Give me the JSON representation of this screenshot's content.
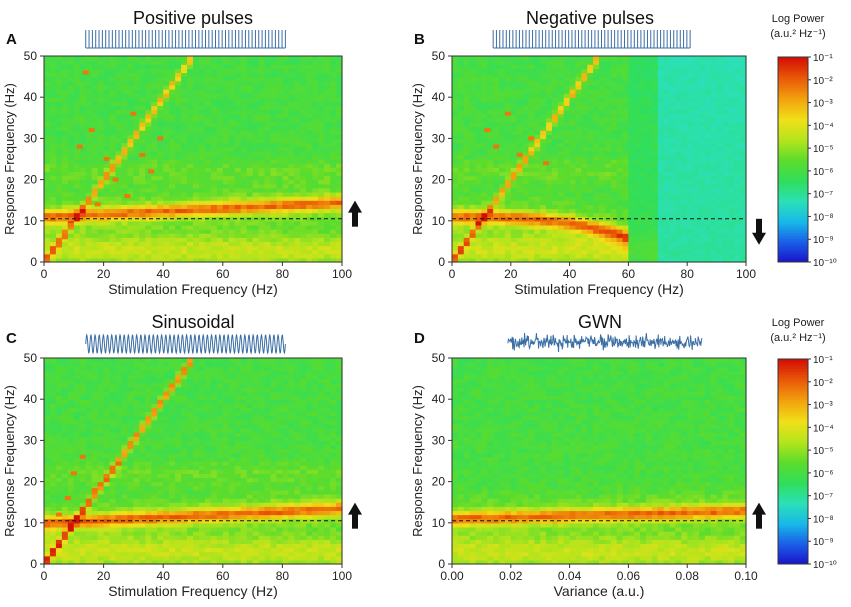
{
  "colors": {
    "colormap": [
      "#1a10c8",
      "#1a5ce8",
      "#18b8e8",
      "#2be0b8",
      "#30de5c",
      "#5cdc2c",
      "#b4e41c",
      "#f0e018",
      "#f2a20e",
      "#ea5a08",
      "#d41004"
    ],
    "dashed_line": "#111111",
    "arrow": "#111111",
    "stimulus": "#3a6ea5"
  },
  "colorbar": {
    "title": "Log Power",
    "units": "(a.u.² Hz⁻¹)",
    "tick_labels": [
      "10⁻¹",
      "10⁻²",
      "10⁻³",
      "10⁻⁴",
      "10⁻⁵",
      "10⁻⁶",
      "10⁻⁷",
      "10⁻⁸",
      "10⁻⁹",
      "10⁻¹⁰"
    ]
  },
  "chart_data": [
    {
      "panel": "A",
      "type": "heatmap",
      "title": "Positive pulses",
      "xlabel": "Stimulation Frequency (Hz)",
      "ylabel": "Response Frequency (Hz)",
      "xlim": [
        0,
        100
      ],
      "ylim": [
        0,
        50
      ],
      "xticks": [
        "0",
        "20",
        "40",
        "60",
        "80",
        "100"
      ],
      "yticks": [
        "0",
        "10",
        "20",
        "30",
        "40",
        "50"
      ],
      "stimulus": "pulse",
      "arrow": "up",
      "baseline_hz": 10.5,
      "ridge": {
        "start_hz": 11,
        "end_hz": 14.5
      },
      "harmonic": {
        "max_hz": 50
      },
      "spike_marks": [
        [
          5,
          4
        ],
        [
          7,
          6
        ],
        [
          9,
          9
        ],
        [
          12,
          28
        ],
        [
          14,
          46
        ],
        [
          16,
          32
        ],
        [
          18,
          14
        ],
        [
          21,
          25
        ],
        [
          24,
          20
        ],
        [
          28,
          16
        ],
        [
          30,
          36
        ],
        [
          33,
          26
        ],
        [
          36,
          22
        ],
        [
          39,
          30
        ]
      ]
    },
    {
      "panel": "B",
      "type": "heatmap",
      "title": "Negative pulses",
      "xlabel": "Stimulation Frequency (Hz)",
      "ylabel": "Response Frequency (Hz)",
      "xlim": [
        0,
        100
      ],
      "ylim": [
        0,
        50
      ],
      "xticks": [
        "0",
        "20",
        "40",
        "60",
        "80",
        "100"
      ],
      "yticks": [
        "0",
        "10",
        "20",
        "30",
        "40",
        "50"
      ],
      "stimulus": "pulse",
      "arrow": "down",
      "baseline_hz": 10.5,
      "ridge": {
        "start_hz": 11,
        "end_hz": 6,
        "end_x": 60
      },
      "harmonic": {
        "max_hz": 50
      },
      "quench_x": [
        60,
        100
      ],
      "spike_marks": [
        [
          12,
          32
        ],
        [
          15,
          28
        ],
        [
          19,
          36
        ],
        [
          23,
          26
        ],
        [
          27,
          30
        ],
        [
          32,
          24
        ]
      ]
    },
    {
      "panel": "C",
      "type": "heatmap",
      "title": "Sinusoidal",
      "xlabel": "Stimulation Frequency (Hz)",
      "ylabel": "Response Frequency (Hz)",
      "xlim": [
        0,
        100
      ],
      "ylim": [
        0,
        50
      ],
      "xticks": [
        "0",
        "20",
        "40",
        "60",
        "80",
        "100"
      ],
      "yticks": [
        "0",
        "10",
        "20",
        "30",
        "40",
        "50"
      ],
      "stimulus": "sine",
      "arrow": "up",
      "baseline_hz": 10.5,
      "ridge": {
        "start_hz": 10,
        "end_hz": 13.5
      },
      "harmonic": {
        "max_hz": 50
      },
      "spike_marks": [
        [
          5,
          12
        ],
        [
          8,
          16
        ],
        [
          10,
          22
        ],
        [
          13,
          26
        ],
        [
          17,
          18
        ]
      ]
    },
    {
      "panel": "D",
      "type": "heatmap",
      "title": "GWN",
      "xlabel": "Variance (a.u.)",
      "ylabel": "Response Frequency (Hz)",
      "xlim": [
        0,
        0.1
      ],
      "ylim": [
        0,
        50
      ],
      "xticks": [
        "0.00",
        "0.02",
        "0.04",
        "0.06",
        "0.08",
        "0.10"
      ],
      "yticks": [
        "0",
        "10",
        "20",
        "30",
        "40",
        "50"
      ],
      "stimulus": "noise",
      "arrow": "up",
      "baseline_hz": 10.5,
      "ridge": {
        "start_hz": 11,
        "end_hz": 13
      },
      "harmonic": null,
      "spike_marks": []
    }
  ]
}
